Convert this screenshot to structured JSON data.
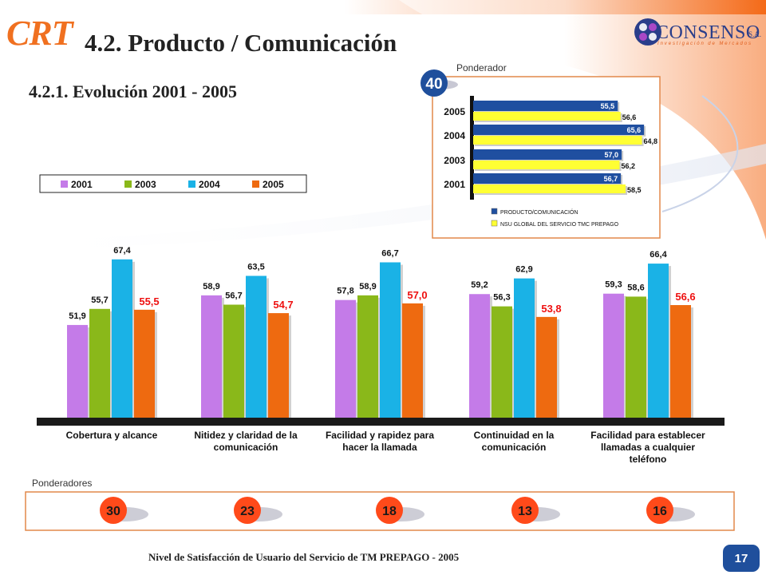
{
  "header": {
    "brand": "CRT",
    "title": "4.2. Producto / Comunicación",
    "subtitle": "4.2.1. Evolución 2001 - 2005",
    "logo_name": "CONSENSO",
    "logo_suffix": "S.A.",
    "logo_tagline": "Investigación de Mercados"
  },
  "ponderador": {
    "label": "Ponderador",
    "value": "40"
  },
  "ponderadores": {
    "label": "Ponderadores",
    "values": [
      "30",
      "23",
      "18",
      "13",
      "16"
    ]
  },
  "footer": {
    "text": "Nivel de Satisfacción de Usuario del Servicio de TM PREPAGO  - 2005",
    "page": "17"
  },
  "colors": {
    "c2001": "#c47be8",
    "c2003": "#8ab81a",
    "c2004": "#1ab2e6",
    "c2005": "#ee6a10",
    "producto": "#1f4fa0",
    "nsu": "#ffff33",
    "accent_orange": "#f07020",
    "badge_red": "#ff4a1a"
  },
  "chart_data": [
    {
      "type": "bar",
      "categories": [
        "Cobertura y alcance",
        "Nitidez y claridad de la comunicación",
        "Facilidad y rapidez para hacer la llamada",
        "Continuidad en la comunicación",
        "Facilidad para establecer llamadas a cualquier teléfono"
      ],
      "category_lines": [
        [
          "Cobertura y alcance"
        ],
        [
          "Nitidez y claridad de la",
          "comunicación"
        ],
        [
          "Facilidad y rapidez para",
          "hacer la llamada"
        ],
        [
          "Continuidad en la",
          "comunicación"
        ],
        [
          "Facilidad para establecer",
          "llamadas a cualquier",
          "teléfono"
        ]
      ],
      "series": [
        {
          "name": "2001",
          "values": [
            51.9,
            58.9,
            57.8,
            59.2,
            59.3
          ],
          "labels": [
            "51,9",
            "58,9",
            "57,8",
            "59,2",
            "59,3"
          ]
        },
        {
          "name": "2003",
          "values": [
            55.7,
            56.7,
            58.9,
            56.3,
            58.6
          ],
          "labels": [
            "55,7",
            "56,7",
            "58,9",
            "56,3",
            "58,6"
          ]
        },
        {
          "name": "2004",
          "values": [
            67.4,
            63.5,
            66.7,
            62.9,
            66.4
          ],
          "labels": [
            "67,4",
            "63,5",
            "66,7",
            "62,9",
            "66,4"
          ]
        },
        {
          "name": "2005",
          "values": [
            55.5,
            54.7,
            57.0,
            53.8,
            56.6
          ],
          "labels": [
            "55,5",
            "54,7",
            "57,0",
            "53,8",
            "56,6"
          ]
        }
      ],
      "ylim": [
        30,
        70
      ],
      "legend": "top-left"
    },
    {
      "type": "bar",
      "orientation": "horizontal",
      "categories": [
        "2005",
        "2004",
        "2003",
        "2001"
      ],
      "series": [
        {
          "name": "PRODUCTO/COMUNICACIÓN",
          "values": [
            55.5,
            65.6,
            57.0,
            56.7
          ],
          "labels": [
            "55,5",
            "65,6",
            "57,0",
            "56,7"
          ]
        },
        {
          "name": "NSU GLOBAL DEL SERVICIO TMC PREPAGO",
          "values": [
            56.6,
            64.8,
            56.2,
            58.5
          ],
          "labels": [
            "56,6",
            "64,8",
            "56,2",
            "58,5"
          ]
        }
      ],
      "xlim": [
        0,
        68
      ],
      "legend": "bottom"
    }
  ]
}
